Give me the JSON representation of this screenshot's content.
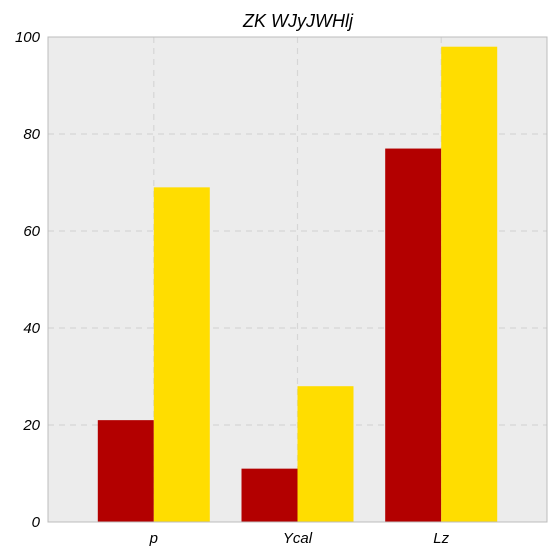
{
  "chart_data": {
    "type": "bar",
    "title": "ZK WJyJWHlj",
    "xlabel": "",
    "ylabel": "",
    "categories": [
      "p",
      "Ycal",
      "Lz"
    ],
    "series": [
      {
        "values": [
          21,
          11,
          77
        ],
        "color": "#b30000"
      },
      {
        "values": [
          69,
          28,
          98
        ],
        "color": "#ffdd00"
      }
    ],
    "ylim": [
      0,
      100
    ],
    "yticks": [
      0,
      20,
      40,
      60,
      80,
      100
    ],
    "grid": true,
    "plot_background": "#ececec",
    "grid_color": "#d6d6d6"
  }
}
